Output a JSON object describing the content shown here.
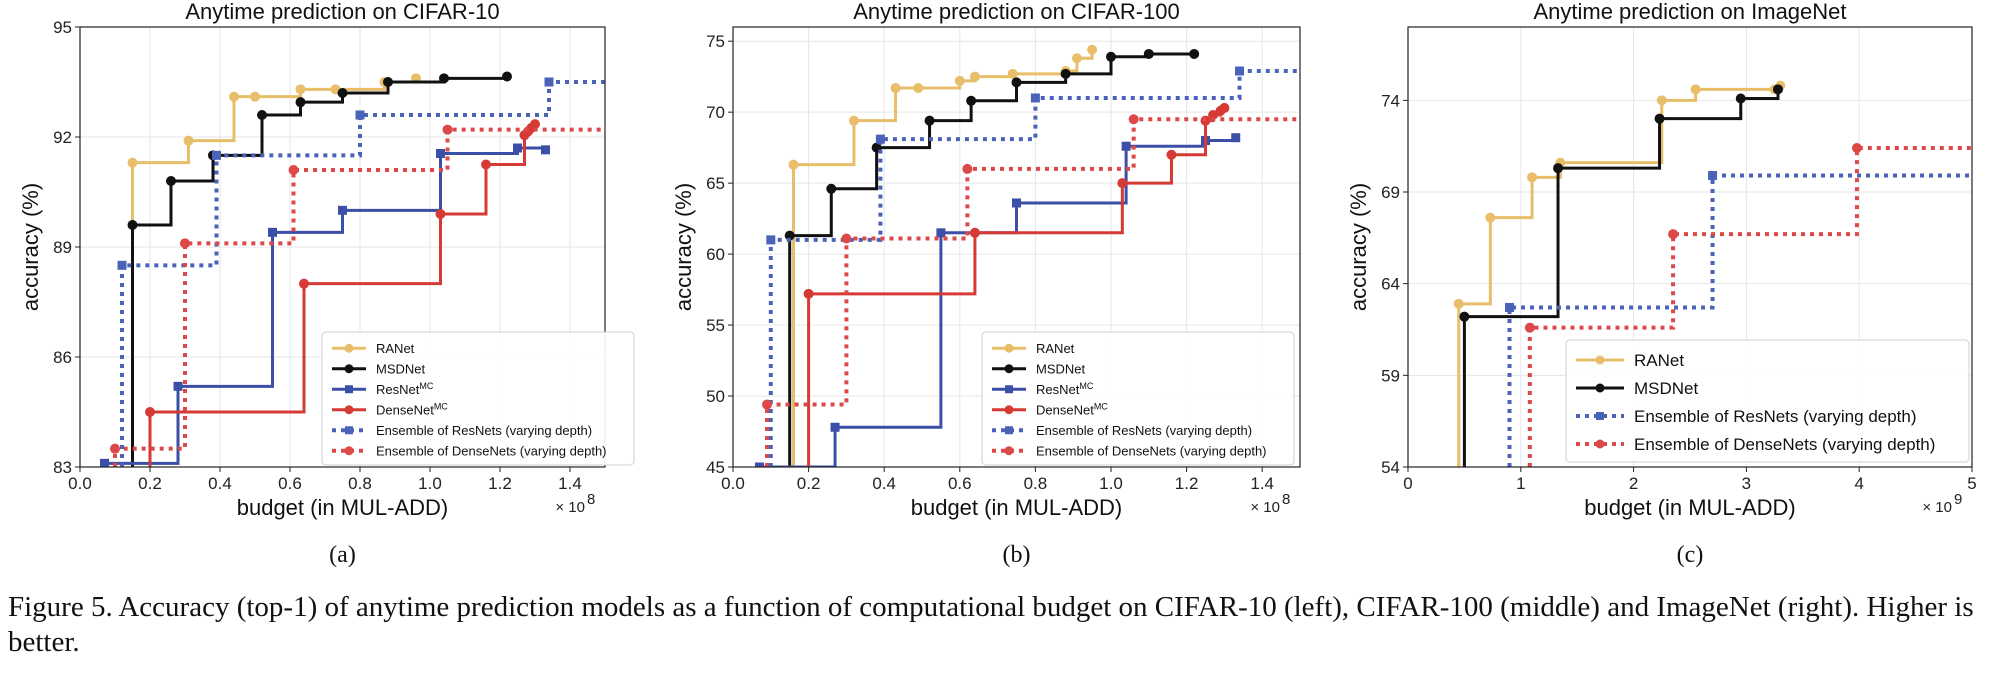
{
  "colors": {
    "ranet": "#e8be6a",
    "msdnet": "#111111",
    "resnet": "#3c4fa8",
    "densenet": "#d63a35",
    "ens_resnet": "#4a63b8",
    "ens_densenet": "#dd4848",
    "grid": "#e6e6e6"
  },
  "chart_data": [
    {
      "type": "line",
      "title": "Anytime prediction on CIFAR-10",
      "xlabel": "budget (in MUL-ADD)",
      "ylabel": "accuracy (%)",
      "x_multiplier": "× 10",
      "x_exponent": "8",
      "sublabel": "(a)",
      "xlim": [
        0,
        1.5
      ],
      "ylim": [
        83,
        95
      ],
      "xticks": [
        0.0,
        0.2,
        0.4,
        0.6,
        0.8,
        1.0,
        1.2,
        1.4
      ],
      "xtick_labels": [
        "0.0",
        "0.2",
        "0.4",
        "0.6",
        "0.8",
        "1.0",
        "1.2",
        "1.4"
      ],
      "yticks": [
        83,
        86,
        89,
        92,
        95
      ],
      "ytick_labels": [
        "83",
        "86",
        "89",
        "92",
        "95"
      ],
      "legend_pos": "bottom-right",
      "series": [
        {
          "name": "RANet",
          "style": "ranet",
          "x": [
            0.15,
            0.31,
            0.44,
            0.5,
            0.63,
            0.73,
            0.87,
            0.96
          ],
          "y": [
            91.3,
            91.9,
            93.1,
            93.1,
            93.3,
            93.3,
            93.5,
            93.6
          ]
        },
        {
          "name": "MSDNet",
          "style": "msdnet",
          "x": [
            0.15,
            0.26,
            0.38,
            0.52,
            0.63,
            0.75,
            0.88,
            1.04,
            1.22
          ],
          "y": [
            89.6,
            90.8,
            91.5,
            92.6,
            92.95,
            93.2,
            93.5,
            93.6,
            93.65
          ]
        },
        {
          "name": "ResNet",
          "sup": "MC",
          "style": "resnet",
          "x": [
            0.07,
            0.28,
            0.55,
            0.75,
            1.03,
            1.25,
            1.33
          ],
          "y": [
            83.1,
            85.2,
            89.4,
            90.0,
            91.55,
            91.7,
            91.65
          ]
        },
        {
          "name": "DenseNet",
          "sup": "MC",
          "style": "densenet",
          "x": [
            0.2,
            0.64,
            1.03,
            1.16,
            1.27,
            1.28,
            1.29,
            1.3
          ],
          "y": [
            84.5,
            88.0,
            89.9,
            91.25,
            92.05,
            92.15,
            92.25,
            92.35
          ]
        },
        {
          "name": "Ensemble of ResNets (varying depth)",
          "style": "ens_resnet",
          "x": [
            0.12,
            0.39,
            0.8,
            1.34
          ],
          "y": [
            88.5,
            91.5,
            92.6,
            93.5
          ],
          "x_end": 1.5
        },
        {
          "name": "Ensemble of DenseNets (varying depth)",
          "style": "ens_densenet",
          "x": [
            0.1,
            0.3,
            0.61,
            1.05
          ],
          "y": [
            83.5,
            89.1,
            91.1,
            92.2
          ],
          "x_end": 1.5
        }
      ]
    },
    {
      "type": "line",
      "title": "Anytime prediction on CIFAR-100",
      "xlabel": "budget (in MUL-ADD)",
      "ylabel": "accuracy (%)",
      "x_multiplier": "× 10",
      "x_exponent": "8",
      "sublabel": "(b)",
      "xlim": [
        0,
        1.5
      ],
      "ylim": [
        45,
        76
      ],
      "xticks": [
        0.0,
        0.2,
        0.4,
        0.6,
        0.8,
        1.0,
        1.2,
        1.4
      ],
      "xtick_labels": [
        "0.0",
        "0.2",
        "0.4",
        "0.6",
        "0.8",
        "1.0",
        "1.2",
        "1.4"
      ],
      "yticks": [
        45,
        50,
        55,
        60,
        65,
        70,
        75
      ],
      "ytick_labels": [
        "45",
        "50",
        "55",
        "60",
        "65",
        "70",
        "75"
      ],
      "legend_pos": "bottom-right",
      "series": [
        {
          "name": "RANet",
          "style": "ranet",
          "x": [
            0.16,
            0.32,
            0.43,
            0.49,
            0.6,
            0.64,
            0.74,
            0.88,
            0.91,
            0.95
          ],
          "y": [
            66.3,
            69.4,
            71.7,
            71.7,
            72.2,
            72.5,
            72.7,
            72.9,
            73.8,
            74.4
          ]
        },
        {
          "name": "MSDNet",
          "style": "msdnet",
          "x": [
            0.15,
            0.26,
            0.38,
            0.52,
            0.63,
            0.75,
            0.88,
            1.0,
            1.1,
            1.22
          ],
          "y": [
            61.3,
            64.6,
            67.5,
            69.4,
            70.8,
            72.1,
            72.7,
            73.9,
            74.1,
            74.1
          ]
        },
        {
          "name": "ResNet",
          "sup": "MC",
          "style": "resnet",
          "x": [
            0.07,
            0.27,
            0.55,
            0.75,
            1.04,
            1.25,
            1.33
          ],
          "y": [
            45.0,
            47.8,
            61.5,
            63.6,
            67.6,
            68.0,
            68.2
          ]
        },
        {
          "name": "DenseNet",
          "sup": "MC",
          "style": "densenet",
          "x": [
            0.2,
            0.64,
            1.03,
            1.16,
            1.25,
            1.27,
            1.29,
            1.3
          ],
          "y": [
            57.2,
            61.5,
            65.0,
            67.0,
            69.4,
            69.8,
            70.1,
            70.3
          ]
        },
        {
          "name": "Ensemble of ResNets (varying depth)",
          "style": "ens_resnet",
          "x": [
            0.1,
            0.39,
            0.8,
            1.34
          ],
          "y": [
            61.0,
            68.1,
            71.0,
            72.9
          ],
          "x_end": 1.5
        },
        {
          "name": "Ensemble of DenseNets (varying depth)",
          "style": "ens_densenet",
          "x": [
            0.09,
            0.3,
            0.62,
            1.06
          ],
          "y": [
            49.4,
            61.1,
            66.0,
            69.5
          ],
          "x_end": 1.5
        }
      ]
    },
    {
      "type": "line",
      "title": "Anytime prediction on ImageNet",
      "xlabel": "budget (in MUL-ADD)",
      "ylabel": "accuracy (%)",
      "x_multiplier": "× 10",
      "x_exponent": "9",
      "sublabel": "(c)",
      "xlim": [
        0,
        5
      ],
      "ylim": [
        54,
        78
      ],
      "xticks": [
        0,
        1,
        2,
        3,
        4,
        5
      ],
      "xtick_labels": [
        "0",
        "1",
        "2",
        "3",
        "4",
        "5"
      ],
      "yticks": [
        54,
        59,
        64,
        69,
        74
      ],
      "ytick_labels": [
        "54",
        "59",
        "64",
        "69",
        "74"
      ],
      "legend_pos": "bottom-right",
      "series": [
        {
          "name": "RANet",
          "style": "ranet",
          "x": [
            0.45,
            0.73,
            1.1,
            1.35,
            2.25,
            2.55,
            3.25,
            3.3
          ],
          "y": [
            62.9,
            67.6,
            69.8,
            70.6,
            74.0,
            74.6,
            74.6,
            74.8
          ]
        },
        {
          "name": "MSDNet",
          "style": "msdnet",
          "x": [
            0.5,
            1.33,
            2.23,
            2.95,
            3.28
          ],
          "y": [
            62.2,
            70.3,
            73.0,
            74.1,
            74.6
          ]
        },
        {
          "name": "Ensemble of ResNets (varying depth)",
          "style": "ens_resnet",
          "x": [
            0.9,
            2.7
          ],
          "y": [
            62.7,
            69.9
          ],
          "x_end": 5
        },
        {
          "name": "Ensemble of DenseNets (varying depth)",
          "style": "ens_densenet",
          "x": [
            1.08,
            2.35,
            3.98
          ],
          "y": [
            61.6,
            66.7,
            71.4
          ],
          "x_end": 5
        }
      ]
    }
  ],
  "caption": "Figure 5. Accuracy (top-1) of anytime prediction models as a function of computational budget on CIFAR-10 (left), CIFAR-100 (middle) and ImageNet (right). Higher is better."
}
